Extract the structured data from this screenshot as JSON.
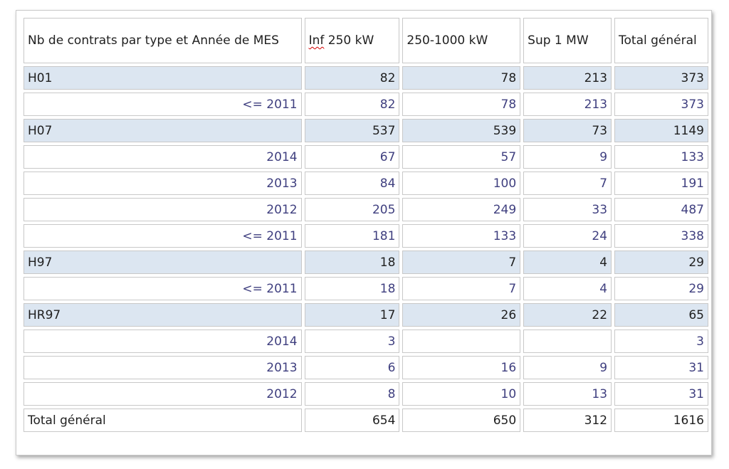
{
  "table": {
    "columns": [
      "Nb de contrats par type et Année de MES",
      "Inf 250 kW",
      "250-1000 kW",
      "Sup 1 MW",
      "Total général"
    ],
    "header_first_word": "Inf",
    "header_rest": " 250 kW",
    "rows": [
      {
        "kind": "group",
        "label": "H01",
        "cells": [
          "82",
          "78",
          "213",
          "373"
        ]
      },
      {
        "kind": "detail",
        "label": "<= 2011",
        "cells": [
          "82",
          "78",
          "213",
          "373"
        ]
      },
      {
        "kind": "group",
        "label": "H07",
        "cells": [
          "537",
          "539",
          "73",
          "1149"
        ]
      },
      {
        "kind": "detail",
        "label": "2014",
        "cells": [
          "67",
          "57",
          "9",
          "133"
        ]
      },
      {
        "kind": "detail",
        "label": "2013",
        "cells": [
          "84",
          "100",
          "7",
          "191"
        ]
      },
      {
        "kind": "detail",
        "label": "2012",
        "cells": [
          "205",
          "249",
          "33",
          "487"
        ]
      },
      {
        "kind": "detail",
        "label": "<= 2011",
        "cells": [
          "181",
          "133",
          "24",
          "338"
        ]
      },
      {
        "kind": "group",
        "label": "H97",
        "cells": [
          "18",
          "7",
          "4",
          "29"
        ]
      },
      {
        "kind": "detail",
        "label": "<= 2011",
        "cells": [
          "18",
          "7",
          "4",
          "29"
        ]
      },
      {
        "kind": "group",
        "label": "HR97",
        "cells": [
          "17",
          "26",
          "22",
          "65"
        ]
      },
      {
        "kind": "detail",
        "label": "2014",
        "cells": [
          "3",
          "",
          "",
          "3"
        ]
      },
      {
        "kind": "detail",
        "label": "2013",
        "cells": [
          "6",
          "16",
          "9",
          "31"
        ]
      },
      {
        "kind": "detail",
        "label": "2012",
        "cells": [
          "8",
          "10",
          "13",
          "31"
        ]
      },
      {
        "kind": "total",
        "label": "Total général",
        "cells": [
          "654",
          "650",
          "312",
          "1616"
        ]
      }
    ]
  }
}
